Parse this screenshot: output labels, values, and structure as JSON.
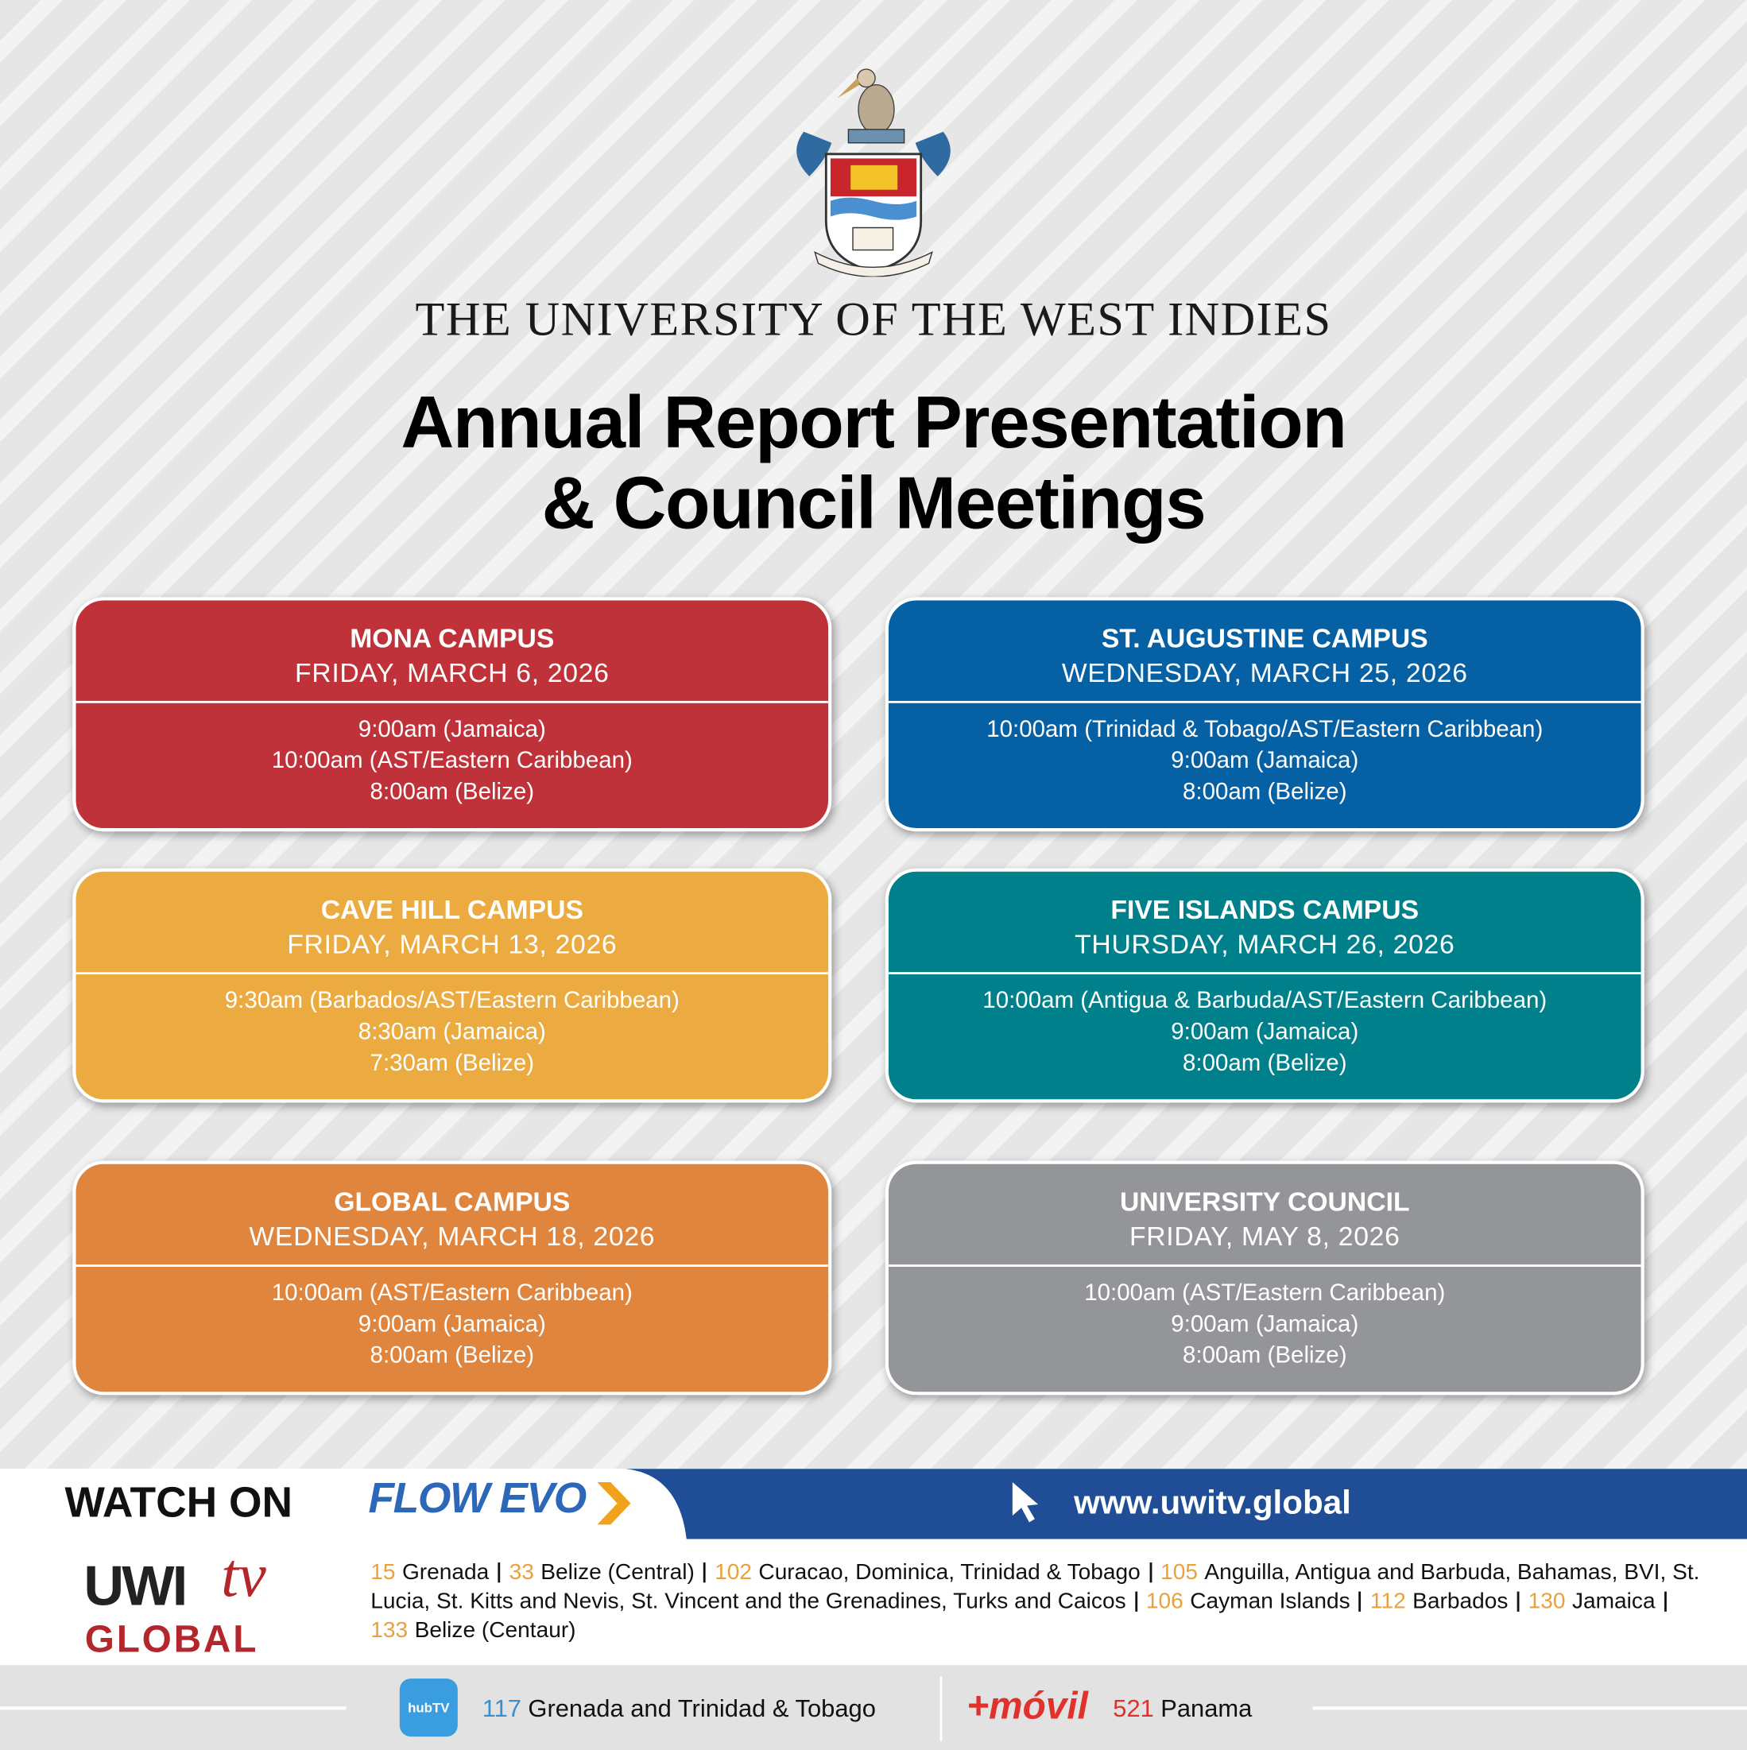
{
  "header": {
    "university": "THE UNIVERSITY OF THE WEST INDIES",
    "title_lines": [
      "Annual Report Presentation",
      "& Council Meetings"
    ]
  },
  "cards": [
    {
      "name": "MONA CAMPUS",
      "date": "FRIDAY, MARCH 6, 2026",
      "color": "#bf3239",
      "times": [
        "9:00am (Jamaica)",
        "10:00am (AST/Eastern Caribbean)",
        "8:00am (Belize)"
      ]
    },
    {
      "name": "ST. AUGUSTINE CAMPUS",
      "date": "WEDNESDAY, MARCH 25, 2026",
      "color": "#0561a4",
      "times": [
        "10:00am (Trinidad & Tobago/AST/Eastern Caribbean)",
        "9:00am (Jamaica)",
        "8:00am (Belize)"
      ]
    },
    {
      "name": "CAVE HILL CAMPUS",
      "date": "FRIDAY, MARCH 13, 2026",
      "color": "#ecab41",
      "times": [
        "9:30am (Barbados/AST/Eastern Caribbean)",
        "8:30am (Jamaica)",
        "7:30am (Belize)"
      ]
    },
    {
      "name": "FIVE ISLANDS CAMPUS",
      "date": "THURSDAY, MARCH 26, 2026",
      "color": "#00808a",
      "times": [
        "10:00am (Antigua & Barbuda/AST/Eastern Caribbean)",
        "9:00am (Jamaica)",
        "8:00am (Belize)"
      ]
    },
    {
      "name": "GLOBAL CAMPUS",
      "date": "WEDNESDAY, MARCH 18, 2026",
      "color": "#e0853d",
      "times": [
        "10:00am (AST/Eastern Caribbean)",
        "9:00am (Jamaica)",
        "8:00am (Belize)"
      ]
    },
    {
      "name": "UNIVERSITY COUNCIL",
      "date": "FRIDAY, MAY 8, 2026",
      "color": "#939598",
      "times": [
        "10:00am (AST/Eastern Caribbean)",
        "9:00am (Jamaica)",
        "8:00am (Belize)"
      ]
    }
  ],
  "footer": {
    "watch_on": "WATCH ON",
    "flow_logo": "FLOW EVO",
    "website": "www.uwitv.global",
    "uwitv_logo": {
      "brand": "UWI",
      "tv": "tv",
      "global": "GLOBAL"
    },
    "channels": [
      {
        "number": 15,
        "places": "Grenada"
      },
      {
        "number": 33,
        "places": "Belize (Central)"
      },
      {
        "number": 102,
        "places": "Curacao, Dominica, Trinidad & Tobago"
      },
      {
        "number": 105,
        "places": "Anguilla, Antigua and Barbuda, Bahamas, BVI, St. Lucia, St. Kitts and Nevis, St. Vincent and the Grenadines, Turks and Caicos"
      },
      {
        "number": 106,
        "places": "Cayman Islands"
      },
      {
        "number": 112,
        "places": "Barbados"
      },
      {
        "number": 130,
        "places": "Jamaica"
      },
      {
        "number": 133,
        "places": "Belize (Centaur)"
      }
    ],
    "hubtv": {
      "logo": "hubTV",
      "number": 117,
      "places": "Grenada and Trinidad & Tobago"
    },
    "movil": {
      "logo": "+móvil",
      "number": 521,
      "places": "Panama"
    }
  }
}
